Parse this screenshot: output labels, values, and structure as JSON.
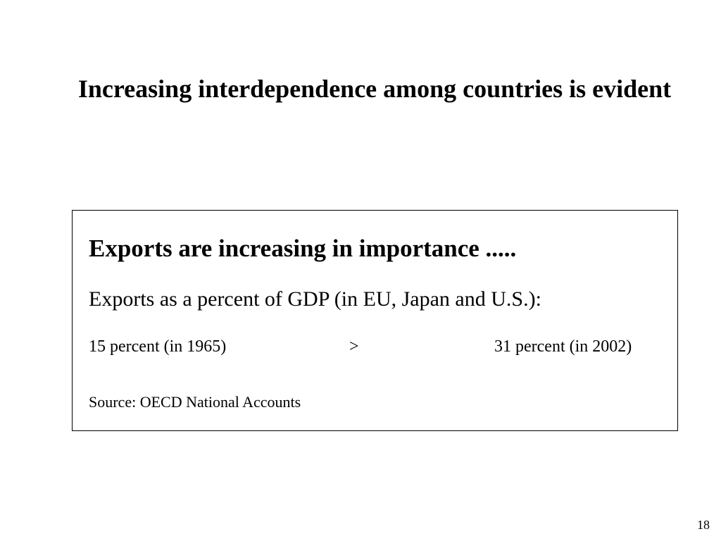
{
  "slide": {
    "title": "Increasing interdependence among countries is evident",
    "page_number": "18"
  },
  "box": {
    "heading": "Exports are increasing in importance .....",
    "subheading": "Exports as a percent of GDP (in EU, Japan and U.S.):",
    "comparison": {
      "left": "15 percent (in 1965)",
      "arrow": ">",
      "right": "31 percent (in 2002)"
    },
    "source": "Source: OECD National Accounts"
  }
}
